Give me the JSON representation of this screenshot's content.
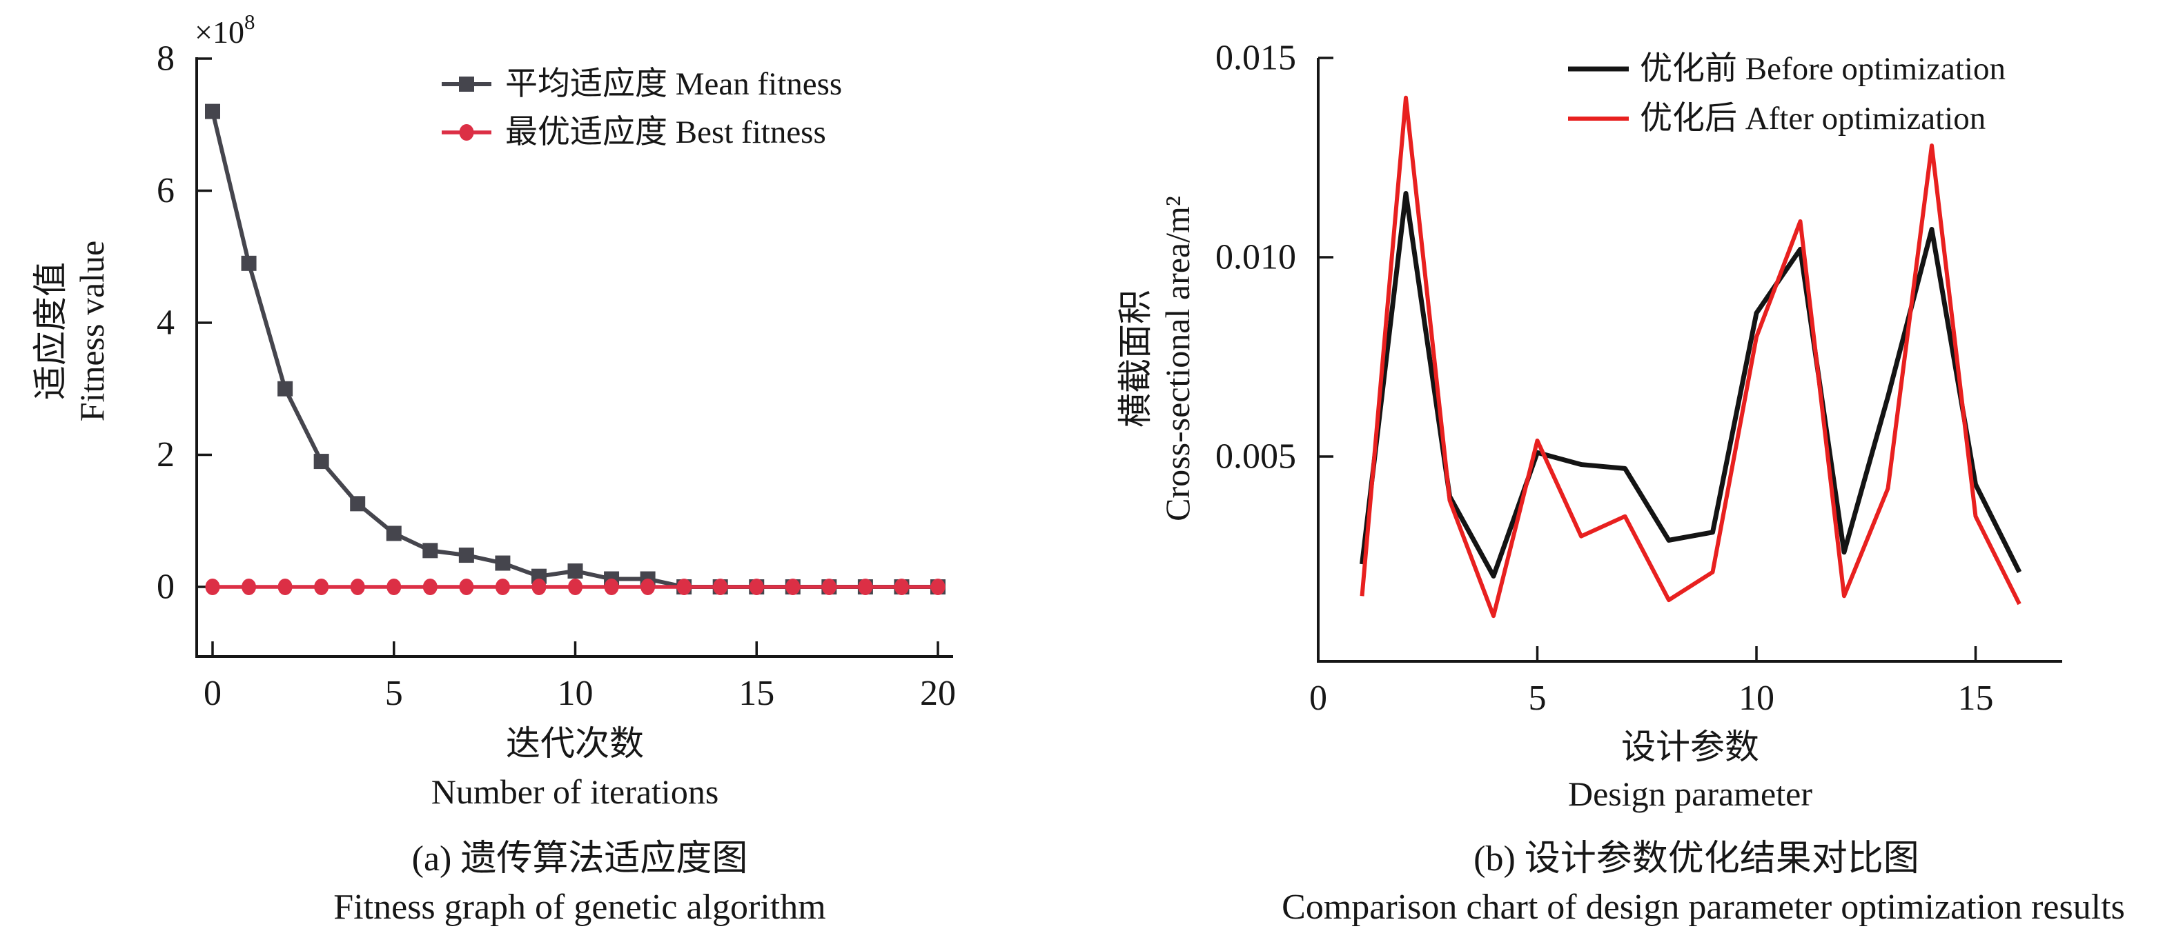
{
  "page": {
    "background": "#ffffff"
  },
  "chart_data": [
    {
      "id": "genetic-algorithm-fitness",
      "type": "line",
      "caption_cn": "(a) 遗传算法适应度图",
      "caption_en": "Fitness graph of genetic algorithm",
      "xlabel_cn": "迭代次数",
      "xlabel_en": "Number of iterations",
      "ylabel_cn": "适应度值",
      "ylabel_en": "Fitness value",
      "y_scale_note": {
        "base": "×10",
        "superscript": "8"
      },
      "xlim": [
        0,
        20
      ],
      "ylim": [
        0,
        8
      ],
      "grid": false,
      "legend_position": "top-right-inside",
      "x_ticks": [
        0,
        5,
        10,
        15,
        20
      ],
      "y_ticks": [
        0,
        2,
        4,
        6,
        8
      ],
      "x": [
        0,
        1,
        2,
        3,
        4,
        5,
        6,
        7,
        8,
        9,
        10,
        11,
        12,
        13,
        14,
        15,
        16,
        17,
        18,
        19,
        20
      ],
      "series": [
        {
          "name": "平均适应度 Mean fitness",
          "color": "#45454D",
          "marker": "square",
          "values": [
            7.2,
            4.9,
            3.0,
            1.9,
            1.26,
            0.81,
            0.55,
            0.48,
            0.36,
            0.16,
            0.24,
            0.12,
            0.12,
            0,
            0,
            0,
            0,
            0,
            0,
            0,
            0
          ]
        },
        {
          "name": "最优适应度 Best fitness",
          "color": "#DC2F45",
          "marker": "circle",
          "values": [
            0,
            0,
            0,
            0,
            0,
            0,
            0,
            0,
            0,
            0,
            0,
            0,
            0,
            0,
            0,
            0,
            0,
            0,
            0,
            0,
            0
          ]
        }
      ]
    },
    {
      "id": "design-parameter-optimization",
      "type": "line",
      "caption_cn": "(b) 设计参数优化结果对比图",
      "caption_en": "Comparison chart of design parameter optimization results",
      "xlabel_cn": "设计参数",
      "xlabel_en": "Design parameter",
      "ylabel_cn": "横截面积",
      "ylabel_en": "Cross-sectional area/m²",
      "xlim": [
        0,
        17
      ],
      "ylim": [
        0,
        0.015
      ],
      "grid": false,
      "legend_position": "top-right-inside",
      "x_ticks": [
        0,
        5,
        10,
        15
      ],
      "y_ticks": [
        0.005,
        0.01,
        0.015
      ],
      "y_tick_labels": [
        "0.005",
        "0.010",
        "0.015"
      ],
      "x": [
        1,
        2,
        3,
        4,
        5,
        6,
        7,
        8,
        9,
        10,
        11,
        12,
        13,
        14,
        15,
        16
      ],
      "series": [
        {
          "name": "优化前 Before optimization",
          "color": "#141414",
          "marker": "none",
          "values": [
            0.0023,
            0.0116,
            0.004,
            0.002,
            0.0051,
            0.0048,
            0.0047,
            0.0029,
            0.0031,
            0.0086,
            0.0102,
            0.0026,
            0.0065,
            0.0107,
            0.0043,
            0.0021
          ]
        },
        {
          "name": "优化后 After optimization",
          "color": "#E8201F",
          "marker": "none",
          "values": [
            0.0015,
            0.014,
            0.0039,
            0.001,
            0.0054,
            0.003,
            0.0035,
            0.0014,
            0.0021,
            0.008,
            0.0109,
            0.0015,
            0.0042,
            0.0128,
            0.0035,
            0.0013
          ]
        }
      ]
    }
  ]
}
